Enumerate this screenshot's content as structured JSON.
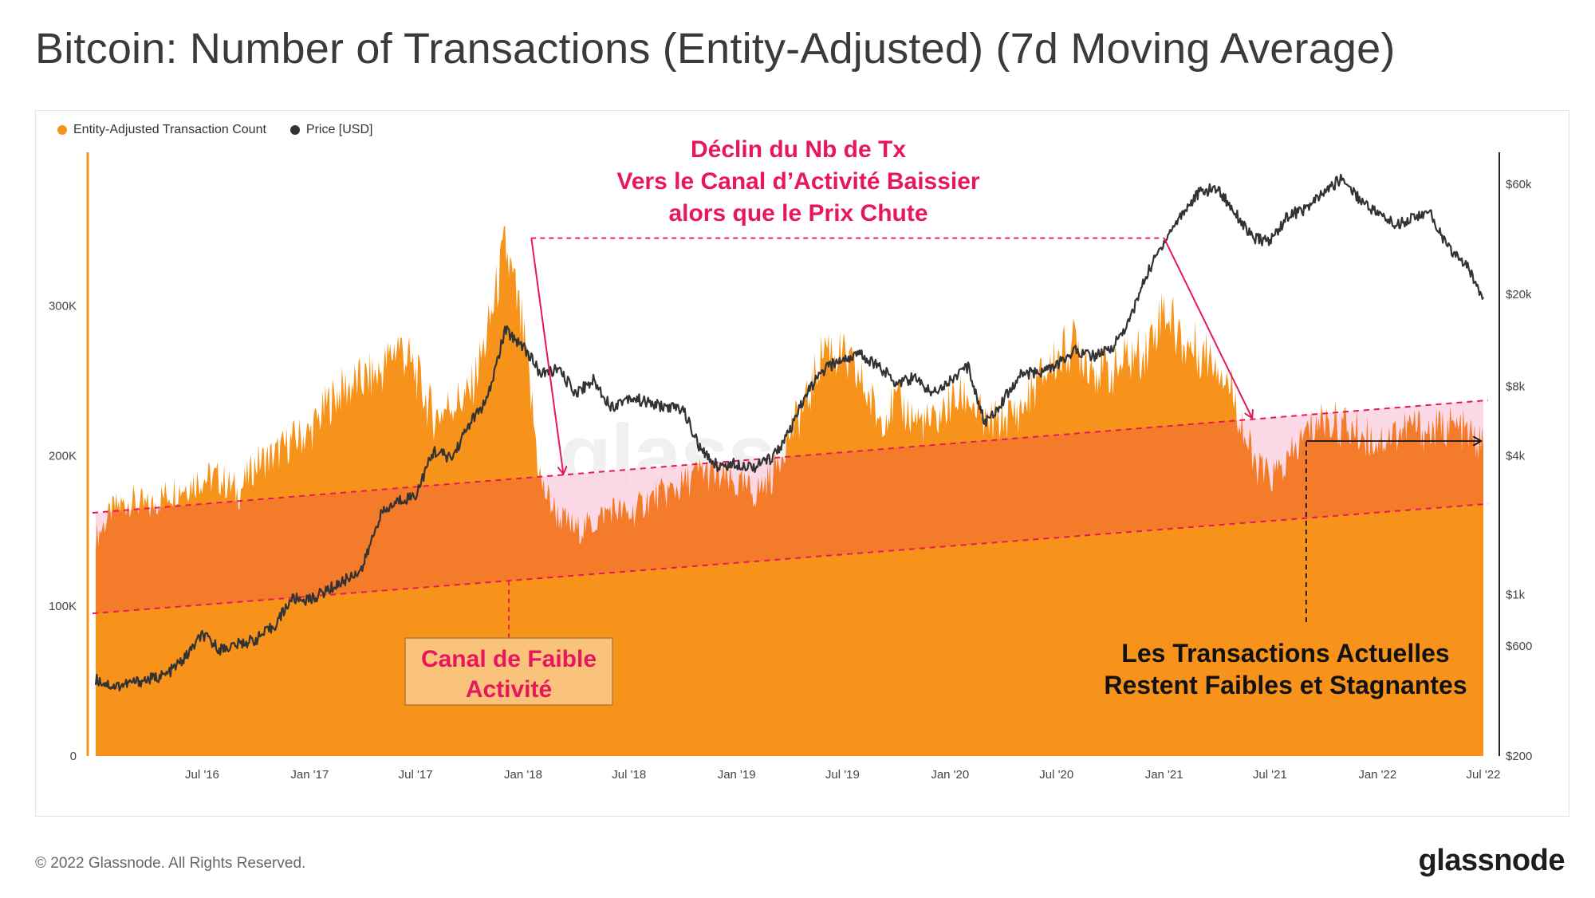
{
  "title": "Bitcoin: Number of Transactions (Entity-Adjusted) (7d Moving Average)",
  "footer": {
    "copyright": "© 2022 Glassnode. All Rights Reserved.",
    "brand": "glassnode"
  },
  "watermark": "glassnode",
  "colors": {
    "tx_fill": "#f7931a",
    "channel_fill": "#f47b2a",
    "price_line": "#333333",
    "pink_accent": "#e8175d",
    "pink_shade": "#fbd2e2",
    "label_box": "#f9c37c"
  },
  "chart_data": {
    "type": "area",
    "legend": [
      {
        "name": "Entity-Adjusted Transaction Count",
        "color": "#f7931a"
      },
      {
        "name": "Price [USD]",
        "color": "#333333"
      }
    ],
    "x_ticks": [
      "Jul '16",
      "Jan '17",
      "Jul '17",
      "Jan '18",
      "Jul '18",
      "Jan '19",
      "Jul '19",
      "Jan '20",
      "Jul '20",
      "Jan '21",
      "Jul '21",
      "Jan '22",
      "Jul '22"
    ],
    "y_left": {
      "ticks": [
        "0",
        "100K",
        "200K",
        "300K"
      ],
      "values": [
        0,
        100000,
        200000,
        300000
      ],
      "lim": [
        0,
        400000
      ]
    },
    "y_right": {
      "scale": "log",
      "ticks": [
        "$200",
        "$600",
        "$1k",
        "$4k",
        "$8k",
        "$20k",
        "$60k"
      ],
      "values": [
        200,
        600,
        1000,
        4000,
        8000,
        20000,
        60000
      ]
    },
    "series": [
      {
        "name": "Entity-Adjusted Transaction Count",
        "x": [
          "2016-01-01",
          "2016-02-01",
          "2016-03-01",
          "2016-04-01",
          "2016-05-01",
          "2016-06-01",
          "2016-07-01",
          "2016-08-01",
          "2016-09-01",
          "2016-10-01",
          "2016-11-01",
          "2016-12-01",
          "2017-01-01",
          "2017-02-01",
          "2017-03-01",
          "2017-04-01",
          "2017-05-01",
          "2017-06-01",
          "2017-07-01",
          "2017-08-01",
          "2017-09-01",
          "2017-10-01",
          "2017-11-01",
          "2017-12-01",
          "2018-01-01",
          "2018-02-01",
          "2018-03-01",
          "2018-04-01",
          "2018-05-01",
          "2018-06-01",
          "2018-07-01",
          "2018-08-01",
          "2018-09-01",
          "2018-10-01",
          "2018-11-01",
          "2018-12-01",
          "2019-01-01",
          "2019-02-01",
          "2019-03-01",
          "2019-04-01",
          "2019-05-01",
          "2019-06-01",
          "2019-07-01",
          "2019-08-01",
          "2019-09-01",
          "2019-10-01",
          "2019-11-01",
          "2019-12-01",
          "2020-01-01",
          "2020-02-01",
          "2020-03-01",
          "2020-04-01",
          "2020-05-01",
          "2020-06-01",
          "2020-07-01",
          "2020-08-01",
          "2020-09-01",
          "2020-10-01",
          "2020-11-01",
          "2020-12-01",
          "2021-01-01",
          "2021-02-01",
          "2021-03-01",
          "2021-04-01",
          "2021-05-01",
          "2021-06-01",
          "2021-07-01",
          "2021-08-01",
          "2021-09-01",
          "2021-10-01",
          "2021-11-01",
          "2021-12-01",
          "2022-01-01",
          "2022-02-01",
          "2022-03-01",
          "2022-04-01",
          "2022-05-01",
          "2022-06-01",
          "2022-07-01"
        ],
        "values": [
          145000,
          165000,
          170000,
          165000,
          175000,
          180000,
          185000,
          185000,
          175000,
          195000,
          200000,
          210000,
          215000,
          235000,
          245000,
          250000,
          255000,
          275000,
          255000,
          225000,
          235000,
          240000,
          280000,
          340000,
          280000,
          180000,
          160000,
          150000,
          155000,
          165000,
          160000,
          170000,
          175000,
          180000,
          190000,
          185000,
          180000,
          175000,
          185000,
          215000,
          235000,
          275000,
          265000,
          250000,
          225000,
          235000,
          225000,
          220000,
          235000,
          240000,
          220000,
          225000,
          230000,
          250000,
          265000,
          275000,
          260000,
          255000,
          265000,
          270000,
          300000,
          275000,
          270000,
          265000,
          240000,
          195000,
          185000,
          195000,
          215000,
          225000,
          220000,
          215000,
          210000,
          215000,
          220000,
          215000,
          220000,
          215000,
          205000
        ]
      },
      {
        "name": "Price [USD]",
        "x": [
          "2016-01-01",
          "2016-02-01",
          "2016-03-01",
          "2016-04-01",
          "2016-05-01",
          "2016-06-01",
          "2016-07-01",
          "2016-08-01",
          "2016-09-01",
          "2016-10-01",
          "2016-11-01",
          "2016-12-01",
          "2017-01-01",
          "2017-02-01",
          "2017-03-01",
          "2017-04-01",
          "2017-05-01",
          "2017-06-01",
          "2017-07-01",
          "2017-08-01",
          "2017-09-01",
          "2017-10-01",
          "2017-11-01",
          "2017-12-01",
          "2018-01-01",
          "2018-02-01",
          "2018-03-01",
          "2018-04-01",
          "2018-05-01",
          "2018-06-01",
          "2018-07-01",
          "2018-08-01",
          "2018-09-01",
          "2018-10-01",
          "2018-11-01",
          "2018-12-01",
          "2019-01-01",
          "2019-02-01",
          "2019-03-01",
          "2019-04-01",
          "2019-05-01",
          "2019-06-01",
          "2019-07-01",
          "2019-08-01",
          "2019-09-01",
          "2019-10-01",
          "2019-11-01",
          "2019-12-01",
          "2020-01-01",
          "2020-02-01",
          "2020-03-01",
          "2020-04-01",
          "2020-05-01",
          "2020-06-01",
          "2020-07-01",
          "2020-08-01",
          "2020-09-01",
          "2020-10-01",
          "2020-11-01",
          "2020-12-01",
          "2021-01-01",
          "2021-02-01",
          "2021-03-01",
          "2021-04-01",
          "2021-05-01",
          "2021-06-01",
          "2021-07-01",
          "2021-08-01",
          "2021-09-01",
          "2021-10-01",
          "2021-11-01",
          "2021-12-01",
          "2022-01-01",
          "2022-02-01",
          "2022-03-01",
          "2022-04-01",
          "2022-05-01",
          "2022-06-01",
          "2022-07-01"
        ],
        "values": [
          430,
          400,
          415,
          430,
          450,
          530,
          670,
          580,
          610,
          640,
          730,
          960,
          950,
          1050,
          1150,
          1300,
          2200,
          2550,
          2700,
          4200,
          3900,
          5500,
          7000,
          14000,
          12000,
          9000,
          9500,
          7500,
          8500,
          6500,
          7200,
          6800,
          6500,
          6400,
          4200,
          3600,
          3700,
          3600,
          3900,
          5000,
          7500,
          9500,
          10500,
          11000,
          9800,
          8300,
          8700,
          7500,
          8500,
          9700,
          5500,
          7000,
          9000,
          9200,
          9800,
          11500,
          10800,
          11500,
          15000,
          24000,
          34000,
          45000,
          55000,
          58000,
          46000,
          35000,
          34000,
          44000,
          47000,
          55000,
          64000,
          52000,
          45000,
          40000,
          43000,
          45000,
          32000,
          27000,
          19500
        ]
      }
    ],
    "annotations": [
      {
        "text": "Déclin du Nb de Tx"
      },
      {
        "text": "Vers le Canal d’Activité Baissier"
      },
      {
        "text": "alors que le Prix Chute"
      },
      {
        "text": "Canal de Faible"
      },
      {
        "text": "Activité"
      },
      {
        "text": "Les Transactions Actuelles"
      },
      {
        "text": "Restent Faibles et Stagnantes"
      }
    ],
    "channel": {
      "lower_start": 95000,
      "lower_end": 168000,
      "upper_start": 162000,
      "upper_end": 237000
    },
    "annotation_guides": {
      "x_start": "2018-01-15",
      "x_end": "2021-01-01",
      "level": 345000,
      "stagnation_start": "2021-09-01"
    },
    "grid": false
  }
}
